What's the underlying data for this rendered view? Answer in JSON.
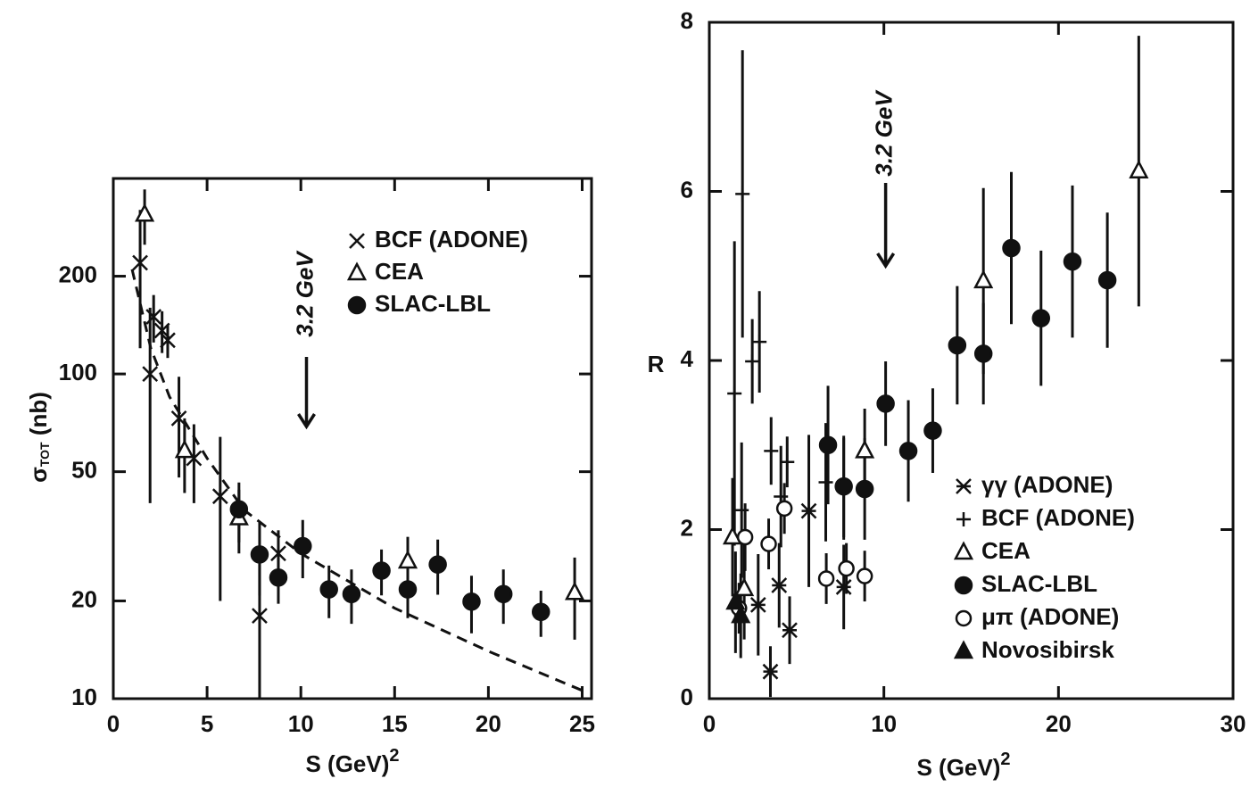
{
  "chart_data": [
    {
      "type": "scatter",
      "x_label": "S (GeV)",
      "x_label_sup": "2",
      "y_label": "σ",
      "y_label_sub": "TOT",
      "y_label_rest": " (nb)",
      "xlim": [
        0,
        25.5
      ],
      "xticks": [
        0,
        5,
        10,
        15,
        20,
        25
      ],
      "ylim": [
        10,
        400
      ],
      "yticks": [
        10,
        20,
        50,
        100,
        200
      ],
      "y_log": true,
      "legend": "upper-right",
      "annotation": {
        "text": "3.2 GeV",
        "x": 10.3
      },
      "series": [
        {
          "name": "BCF (ADONE)",
          "marker": "x",
          "color": "#111",
          "x": [
            1.43,
            1.96,
            2.15,
            2.6,
            2.9,
            3.5,
            4.3,
            5.7,
            7.8,
            8.8
          ],
          "values": [
            220,
            100,
            150,
            136,
            127,
            73,
            55,
            42,
            18,
            28
          ],
          "errors": [
            100,
            60,
            25,
            20,
            15,
            25,
            15,
            22,
            8,
            5
          ]
        },
        {
          "name": "CEA",
          "marker": "triangle-open",
          "color": "#111",
          "x": [
            1.67,
            3.8,
            6.7,
            15.7,
            24.6
          ],
          "values": [
            310,
            58,
            36,
            26.5,
            21.2
          ],
          "errors": [
            60,
            15,
            8,
            5,
            6
          ]
        },
        {
          "name": "SLAC-LBL",
          "marker": "circle",
          "color": "#111",
          "x": [
            6.7,
            7.8,
            8.8,
            10.1,
            11.5,
            12.7,
            14.3,
            15.7,
            17.3,
            19.1,
            20.8,
            22.8
          ],
          "values": [
            38.3,
            27.8,
            23.6,
            29.5,
            21.7,
            21.0,
            24.8,
            21.7,
            25.9,
            19.9,
            21.0,
            18.5
          ],
          "errors": [
            8,
            7,
            4,
            6,
            4,
            4,
            4,
            4,
            5,
            4,
            4,
            3
          ]
        }
      ],
      "curve": {
        "x": [
          1,
          2,
          3,
          5,
          7,
          10,
          15,
          20,
          25
        ],
        "values": [
          210,
          120,
          85,
          55,
          38,
          28,
          19,
          14,
          10.6
        ]
      }
    },
    {
      "type": "scatter",
      "x_label": "S (GeV)",
      "x_label_sup": "2",
      "y_label": "R",
      "xlim": [
        0,
        30
      ],
      "xticks": [
        0,
        10,
        20,
        30
      ],
      "ylim": [
        0,
        8
      ],
      "yticks": [
        0,
        2,
        4,
        6,
        8
      ],
      "y_log": false,
      "legend": "lower-right",
      "annotation": {
        "text": "3.2 GeV",
        "x": 10.1
      },
      "series": [
        {
          "name": "γγ (ADONE)",
          "marker": "star",
          "color": "#111",
          "x": [
            2.8,
            3.5,
            4.0,
            4.6,
            5.7,
            7.7
          ],
          "values": [
            1.11,
            0.32,
            1.34,
            0.81,
            2.22,
            1.32
          ],
          "errors": [
            0.6,
            0.3,
            0.5,
            0.4,
            0.9,
            0.5
          ]
        },
        {
          "name": "BCF (ADONE)",
          "marker": "plus",
          "color": "#111",
          "x": [
            1.9,
            1.85,
            1.44,
            2.46,
            2.87,
            3.54,
            4.1,
            4.46,
            6.67,
            7.7
          ],
          "values": [
            5.97,
            2.23,
            3.61,
            3.99,
            4.22,
            2.93,
            2.39,
            2.8,
            2.56,
            2.48
          ],
          "errors": [
            1.7,
            0.8,
            1.8,
            0.5,
            0.6,
            0.4,
            0.6,
            0.3,
            0.7,
            0.6
          ]
        },
        {
          "name": "CEA",
          "marker": "triangle-open",
          "color": "#111",
          "x": [
            1.33,
            2.0,
            15.7,
            24.6,
            8.9
          ],
          "values": [
            1.91,
            1.3,
            4.94,
            6.24,
            2.93
          ],
          "errors": [
            0.7,
            0.6,
            1.1,
            1.6,
            0.5
          ]
        },
        {
          "name": "SLAC-LBL",
          "marker": "circle",
          "color": "#111",
          "x": [
            6.8,
            7.7,
            8.9,
            10.1,
            11.4,
            12.8,
            14.2,
            15.7,
            17.3,
            19.0,
            20.8,
            22.8
          ],
          "values": [
            3.0,
            2.51,
            2.48,
            3.49,
            2.93,
            3.17,
            4.18,
            4.08,
            5.33,
            4.5,
            5.17,
            4.95
          ],
          "errors": [
            0.7,
            0.6,
            0.6,
            0.5,
            0.6,
            0.5,
            0.7,
            0.6,
            0.9,
            0.8,
            0.9,
            0.8
          ]
        },
        {
          "name": "μπ (ADONE)",
          "marker": "circle-open",
          "color": "#111",
          "x": [
            2.05,
            3.4,
            4.3,
            6.7,
            7.85,
            8.9,
            1.7
          ],
          "values": [
            1.91,
            1.83,
            2.25,
            1.42,
            1.54,
            1.45,
            1.07
          ],
          "errors": [
            0.4,
            0.3,
            0.3,
            0.3,
            0.3,
            0.3,
            0.3
          ]
        },
        {
          "name": "Novosibirsk",
          "marker": "triangle",
          "color": "#111",
          "x": [
            1.5,
            1.8
          ],
          "values": [
            1.14,
            0.98
          ],
          "errors": [
            0.6,
            0.5
          ]
        }
      ]
    }
  ]
}
